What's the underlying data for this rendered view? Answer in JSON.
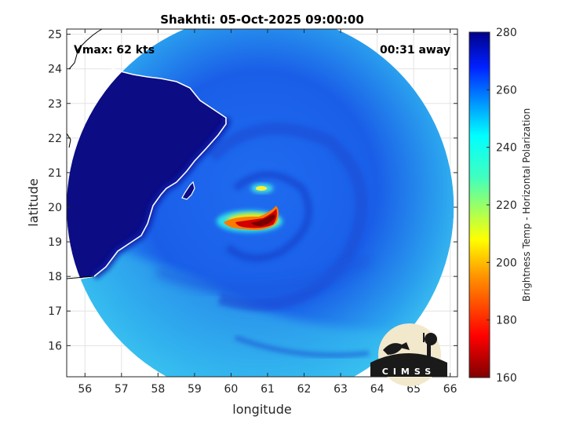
{
  "chart_data": {
    "type": "heatmap",
    "title": "Shakhti: 05-Oct-2025 09:00:00",
    "xlabel": "longitude",
    "ylabel": "latitude",
    "xlim": [
      55.5,
      66.2
    ],
    "ylim": [
      15.1,
      25.15
    ],
    "xticks": [
      "56",
      "57",
      "58",
      "59",
      "60",
      "61",
      "62",
      "63",
      "64",
      "65",
      "66"
    ],
    "yticks": [
      "16",
      "17",
      "18",
      "19",
      "20",
      "21",
      "22",
      "23",
      "24",
      "25"
    ],
    "grid": true,
    "annotations": {
      "left": "Vmax: 62 kts",
      "right": "00:31 away"
    },
    "colorbar": {
      "label": "Brightness Temp - Horizontal Polarization",
      "min": 160,
      "max": 280,
      "ticks": [
        "160",
        "180",
        "200",
        "220",
        "240",
        "260",
        "280"
      ]
    },
    "swath": {
      "center_lon": 60.8,
      "center_lat": 20.0,
      "radius_deg": 5.3
    },
    "storm_center": {
      "lon": 60.8,
      "lat": 19.75
    },
    "logo_text": "CIMSS"
  }
}
